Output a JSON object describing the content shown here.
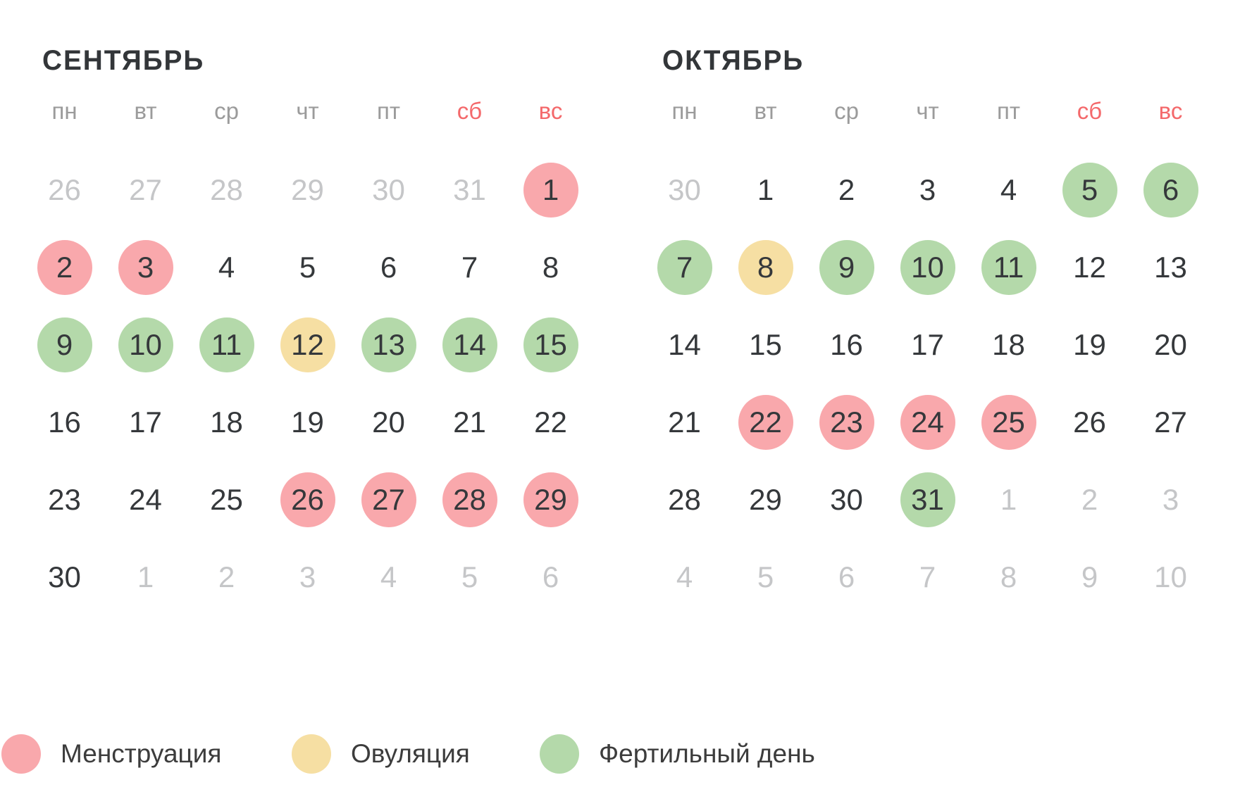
{
  "colors": {
    "menstruation": "#F9A8AC",
    "ovulation": "#F6DFA3",
    "fertile": "#B4D9AA",
    "day_text": "#35383B",
    "muted_day_text": "#C5C6C8",
    "weekday_text": "#9B9B9B",
    "weekend_text": "#F4696B",
    "title_text": "#333639",
    "legend_text": "#3C3C3C"
  },
  "months": [
    {
      "id": "september",
      "title": "СЕНТЯБРЬ",
      "weekdays": [
        {
          "label": "пн",
          "weekend": false
        },
        {
          "label": "вт",
          "weekend": false
        },
        {
          "label": "ср",
          "weekend": false
        },
        {
          "label": "чт",
          "weekend": false
        },
        {
          "label": "пт",
          "weekend": false
        },
        {
          "label": "сб",
          "weekend": true
        },
        {
          "label": "вс",
          "weekend": true
        }
      ],
      "days": [
        {
          "label": "26",
          "muted": true,
          "type": null
        },
        {
          "label": "27",
          "muted": true,
          "type": null
        },
        {
          "label": "28",
          "muted": true,
          "type": null
        },
        {
          "label": "29",
          "muted": true,
          "type": null
        },
        {
          "label": "30",
          "muted": true,
          "type": null
        },
        {
          "label": "31",
          "muted": true,
          "type": null
        },
        {
          "label": "1",
          "muted": false,
          "type": "menstruation"
        },
        {
          "label": "2",
          "muted": false,
          "type": "menstruation"
        },
        {
          "label": "3",
          "muted": false,
          "type": "menstruation"
        },
        {
          "label": "4",
          "muted": false,
          "type": null
        },
        {
          "label": "5",
          "muted": false,
          "type": null
        },
        {
          "label": "6",
          "muted": false,
          "type": null
        },
        {
          "label": "7",
          "muted": false,
          "type": null
        },
        {
          "label": "8",
          "muted": false,
          "type": null
        },
        {
          "label": "9",
          "muted": false,
          "type": "fertile"
        },
        {
          "label": "10",
          "muted": false,
          "type": "fertile"
        },
        {
          "label": "11",
          "muted": false,
          "type": "fertile"
        },
        {
          "label": "12",
          "muted": false,
          "type": "ovulation"
        },
        {
          "label": "13",
          "muted": false,
          "type": "fertile"
        },
        {
          "label": "14",
          "muted": false,
          "type": "fertile"
        },
        {
          "label": "15",
          "muted": false,
          "type": "fertile"
        },
        {
          "label": "16",
          "muted": false,
          "type": null
        },
        {
          "label": "17",
          "muted": false,
          "type": null
        },
        {
          "label": "18",
          "muted": false,
          "type": null
        },
        {
          "label": "19",
          "muted": false,
          "type": null
        },
        {
          "label": "20",
          "muted": false,
          "type": null
        },
        {
          "label": "21",
          "muted": false,
          "type": null
        },
        {
          "label": "22",
          "muted": false,
          "type": null
        },
        {
          "label": "23",
          "muted": false,
          "type": null
        },
        {
          "label": "24",
          "muted": false,
          "type": null
        },
        {
          "label": "25",
          "muted": false,
          "type": null
        },
        {
          "label": "26",
          "muted": false,
          "type": "menstruation"
        },
        {
          "label": "27",
          "muted": false,
          "type": "menstruation"
        },
        {
          "label": "28",
          "muted": false,
          "type": "menstruation"
        },
        {
          "label": "29",
          "muted": false,
          "type": "menstruation"
        },
        {
          "label": "30",
          "muted": false,
          "type": null
        },
        {
          "label": "1",
          "muted": true,
          "type": null
        },
        {
          "label": "2",
          "muted": true,
          "type": null
        },
        {
          "label": "3",
          "muted": true,
          "type": null
        },
        {
          "label": "4",
          "muted": true,
          "type": null
        },
        {
          "label": "5",
          "muted": true,
          "type": null
        },
        {
          "label": "6",
          "muted": true,
          "type": null
        }
      ]
    },
    {
      "id": "october",
      "title": "ОКТЯБРЬ",
      "weekdays": [
        {
          "label": "пн",
          "weekend": false
        },
        {
          "label": "вт",
          "weekend": false
        },
        {
          "label": "ср",
          "weekend": false
        },
        {
          "label": "чт",
          "weekend": false
        },
        {
          "label": "пт",
          "weekend": false
        },
        {
          "label": "сб",
          "weekend": true
        },
        {
          "label": "вс",
          "weekend": true
        }
      ],
      "days": [
        {
          "label": "30",
          "muted": true,
          "type": null
        },
        {
          "label": "1",
          "muted": false,
          "type": null
        },
        {
          "label": "2",
          "muted": false,
          "type": null
        },
        {
          "label": "3",
          "muted": false,
          "type": null
        },
        {
          "label": "4",
          "muted": false,
          "type": null
        },
        {
          "label": "5",
          "muted": false,
          "type": "fertile"
        },
        {
          "label": "6",
          "muted": false,
          "type": "fertile"
        },
        {
          "label": "7",
          "muted": false,
          "type": "fertile"
        },
        {
          "label": "8",
          "muted": false,
          "type": "ovulation"
        },
        {
          "label": "9",
          "muted": false,
          "type": "fertile"
        },
        {
          "label": "10",
          "muted": false,
          "type": "fertile"
        },
        {
          "label": "11",
          "muted": false,
          "type": "fertile"
        },
        {
          "label": "12",
          "muted": false,
          "type": null
        },
        {
          "label": "13",
          "muted": false,
          "type": null
        },
        {
          "label": "14",
          "muted": false,
          "type": null
        },
        {
          "label": "15",
          "muted": false,
          "type": null
        },
        {
          "label": "16",
          "muted": false,
          "type": null
        },
        {
          "label": "17",
          "muted": false,
          "type": null
        },
        {
          "label": "18",
          "muted": false,
          "type": null
        },
        {
          "label": "19",
          "muted": false,
          "type": null
        },
        {
          "label": "20",
          "muted": false,
          "type": null
        },
        {
          "label": "21",
          "muted": false,
          "type": null
        },
        {
          "label": "22",
          "muted": false,
          "type": "menstruation"
        },
        {
          "label": "23",
          "muted": false,
          "type": "menstruation"
        },
        {
          "label": "24",
          "muted": false,
          "type": "menstruation"
        },
        {
          "label": "25",
          "muted": false,
          "type": "menstruation"
        },
        {
          "label": "26",
          "muted": false,
          "type": null
        },
        {
          "label": "27",
          "muted": false,
          "type": null
        },
        {
          "label": "28",
          "muted": false,
          "type": null
        },
        {
          "label": "29",
          "muted": false,
          "type": null
        },
        {
          "label": "30",
          "muted": false,
          "type": null
        },
        {
          "label": "31",
          "muted": false,
          "type": "fertile"
        },
        {
          "label": "1",
          "muted": true,
          "type": null
        },
        {
          "label": "2",
          "muted": true,
          "type": null
        },
        {
          "label": "3",
          "muted": true,
          "type": null
        },
        {
          "label": "4",
          "muted": true,
          "type": null
        },
        {
          "label": "5",
          "muted": true,
          "type": null
        },
        {
          "label": "6",
          "muted": true,
          "type": null
        },
        {
          "label": "7",
          "muted": true,
          "type": null
        },
        {
          "label": "8",
          "muted": true,
          "type": null
        },
        {
          "label": "9",
          "muted": true,
          "type": null
        },
        {
          "label": "10",
          "muted": true,
          "type": null
        }
      ]
    }
  ],
  "legend": [
    {
      "type": "menstruation",
      "label": "Менструация"
    },
    {
      "type": "ovulation",
      "label": "Овуляция"
    },
    {
      "type": "fertile",
      "label": "Фертильный день"
    }
  ]
}
